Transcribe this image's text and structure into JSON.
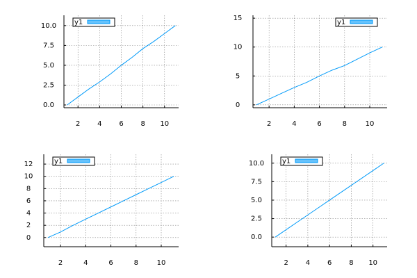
{
  "chart_data": [
    {
      "type": "line",
      "x": [
        1,
        2,
        3,
        4,
        5,
        6,
        7,
        8,
        9,
        10,
        11
      ],
      "series": [
        {
          "name": "y1",
          "color": "#009af9",
          "values": [
            0,
            1,
            2,
            2.9,
            3.9,
            5,
            6,
            7.1,
            8,
            9,
            10
          ]
        }
      ],
      "xlim": [
        0.7,
        11.3
      ],
      "ylim": [
        -0.35,
        11.3
      ],
      "xticks": [
        2,
        4,
        6,
        8,
        10
      ],
      "yticks": [
        {
          "value": 0,
          "label": "0.0"
        },
        {
          "value": 2.5,
          "label": "2.5"
        },
        {
          "value": 5,
          "label": "5.0"
        },
        {
          "value": 7.5,
          "label": "7.5"
        },
        {
          "value": 10,
          "label": "10.0"
        }
      ],
      "grid": true,
      "legend": "top-left"
    },
    {
      "type": "line",
      "x": [
        1,
        2,
        3,
        4,
        5,
        6,
        7,
        8,
        9,
        10,
        11
      ],
      "series": [
        {
          "name": "y1",
          "color": "#009af9",
          "values": [
            0,
            1,
            2,
            3,
            3.9,
            5,
            6,
            6.8,
            7.9,
            9,
            10
          ]
        }
      ],
      "xlim": [
        0.72,
        11.38
      ],
      "ylim": [
        -0.5,
        15.5
      ],
      "xticks": [
        2,
        4,
        6,
        8,
        10
      ],
      "yticks": [
        0,
        5,
        10,
        15
      ],
      "grid": true,
      "legend": "top-right"
    },
    {
      "type": "line",
      "x": [
        1,
        2,
        3,
        4,
        5,
        6,
        7,
        8,
        9,
        10,
        11
      ],
      "series": [
        {
          "name": "y1",
          "color": "#009af9",
          "values": [
            0,
            0.9,
            2,
            3,
            4,
            5,
            6,
            7,
            8,
            9,
            10
          ]
        }
      ],
      "xlim": [
        0.67,
        11.38
      ],
      "ylim": [
        -1.5,
        13.6
      ],
      "xticks": [
        2,
        4,
        6,
        8,
        10
      ],
      "yticks": [
        0,
        2,
        4,
        6,
        8,
        10,
        12
      ],
      "grid": true,
      "legend": "top-left"
    },
    {
      "type": "line",
      "x": [
        1,
        2,
        3,
        4,
        5,
        6,
        7,
        8,
        9,
        10,
        11
      ],
      "series": [
        {
          "name": "y1",
          "color": "#009af9",
          "values": [
            0,
            1,
            2,
            3,
            4,
            5,
            6,
            7,
            8,
            9,
            10
          ]
        }
      ],
      "xlim": [
        0.68,
        11.3
      ],
      "ylim": [
        -1.3,
        11.2
      ],
      "xticks": [
        2,
        4,
        6,
        8,
        10
      ],
      "yticks": [
        {
          "value": 0,
          "label": "0.0"
        },
        {
          "value": 2.5,
          "label": "2.5"
        },
        {
          "value": 5,
          "label": "5.0"
        },
        {
          "value": 7.5,
          "label": "7.5"
        },
        {
          "value": 10,
          "label": "10.0"
        }
      ],
      "grid": true,
      "legend": "top-left"
    }
  ]
}
